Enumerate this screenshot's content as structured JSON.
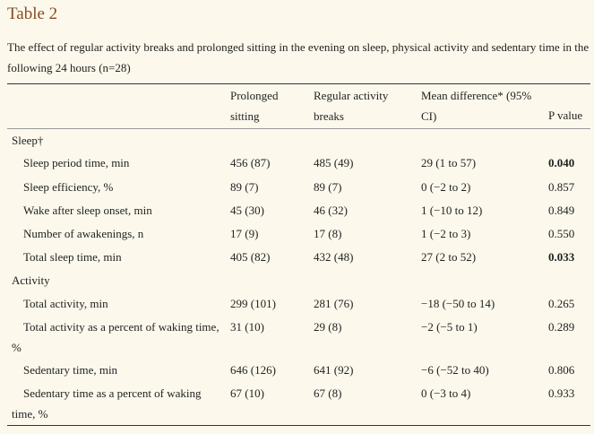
{
  "table": {
    "label": "Table 2",
    "caption": "The effect of regular activity breaks and prolonged sitting in the evening on sleep, physical activity and sedentary time in the following 24 hours (n=28)",
    "headers": {
      "col1": "Prolonged sitting",
      "col2": "Regular activity breaks",
      "col3": "Mean difference* (95% CI)",
      "col4": "P value"
    },
    "sections": [
      {
        "name": "Sleep†",
        "rows": [
          {
            "label": "Sleep period time, min",
            "prolonged": "456 (87)",
            "breaks": "485 (49)",
            "diff": "29 (1 to 57)",
            "p": "0.040",
            "p_bold": true
          },
          {
            "label": "Sleep efficiency, %",
            "prolonged": "89 (7)",
            "breaks": "89 (7)",
            "diff": "0 (−2 to 2)",
            "p": "0.857",
            "p_bold": false
          },
          {
            "label": "Wake after sleep onset, min",
            "prolonged": "45 (30)",
            "breaks": "46 (32)",
            "diff": "1 (−10 to 12)",
            "p": "0.849",
            "p_bold": false
          },
          {
            "label": "Number of awakenings, n",
            "prolonged": "17 (9)",
            "breaks": "17 (8)",
            "diff": "1 (−2 to 3)",
            "p": "0.550",
            "p_bold": false
          },
          {
            "label": "Total sleep time, min",
            "prolonged": "405 (82)",
            "breaks": "432 (48)",
            "diff": "27 (2 to 52)",
            "p": "0.033",
            "p_bold": true
          }
        ]
      },
      {
        "name": "Activity",
        "rows": [
          {
            "label": "Total activity, min",
            "prolonged": "299 (101)",
            "breaks": "281 (76)",
            "diff": "−18 (−50 to 14)",
            "p": "0.265",
            "p_bold": false
          },
          {
            "label": "Total activity as a percent of waking time, %",
            "prolonged": "31 (10)",
            "breaks": "29 (8)",
            "diff": "−2 (−5 to 1)",
            "p": "0.289",
            "p_bold": false
          },
          {
            "label": "Sedentary time, min",
            "prolonged": "646 (126)",
            "breaks": "641 (92)",
            "diff": "−6 (−52 to 40)",
            "p": "0.806",
            "p_bold": false
          },
          {
            "label": "Sedentary time as a percent of waking time, %",
            "prolonged": "67 (10)",
            "breaks": "67 (8)",
            "diff": "0 (−3 to 4)",
            "p": "0.933",
            "p_bold": false
          }
        ]
      }
    ]
  }
}
